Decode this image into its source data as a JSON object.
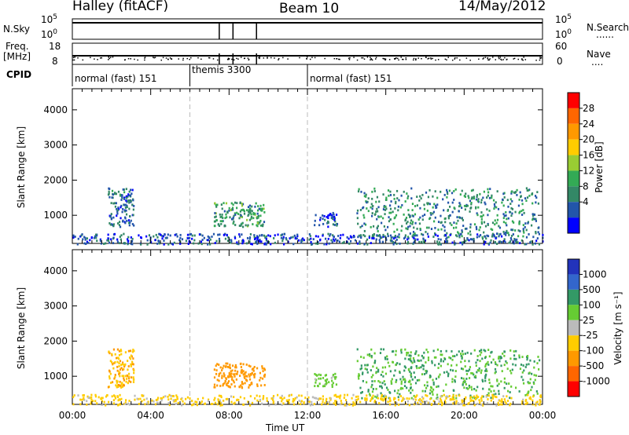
{
  "header": {
    "station": "Halley (fitACF)",
    "beam": "Beam 10",
    "date": "14/May/2012"
  },
  "strip_labels": {
    "nsky": "N.Sky",
    "freq_line1": "Freq.",
    "freq_line2": "[MHz]",
    "cpid": "CPID",
    "nsearch": "N.Search",
    "nave": "Nave",
    "nsky_ticks": [
      "10^5",
      "10^0"
    ],
    "nsearch_ticks": [
      "10^5",
      "10^0"
    ],
    "freq_ticks": [
      "18",
      "8"
    ],
    "nave_ticks": [
      "60",
      "0"
    ],
    "legend_dots": "......",
    "nave_dots": "...."
  },
  "cpid_segments": [
    {
      "start_hour": 0,
      "label": "normal (fast) 151"
    },
    {
      "start_hour": 6,
      "label": "themis 3300"
    },
    {
      "start_hour": 12,
      "label": "normal (fast) 151"
    }
  ],
  "colorbars": {
    "power": {
      "title": "Power [dB]",
      "ticks": [
        "28",
        "24",
        "20",
        "16",
        "12",
        "8",
        "4"
      ],
      "colors": [
        "#ff0000",
        "#ff6600",
        "#ff9900",
        "#ffcc00",
        "#99cc33",
        "#33aa55",
        "#338866",
        "#2255aa",
        "#0000ff"
      ]
    },
    "velocity": {
      "title": "Velocity [m s⁻¹]",
      "ticks": [
        "1000",
        "500",
        "100",
        "25",
        "-25",
        "-100",
        "-500",
        "-1000"
      ],
      "colors": [
        "#2233bb",
        "#3366cc",
        "#339966",
        "#66cc33",
        "#bbbbbb",
        "#ffcc00",
        "#ff9900",
        "#ff6600",
        "#ff0000"
      ]
    }
  },
  "chart_data": [
    {
      "type": "heatmap",
      "title": "",
      "ylabel": "Slant Range [km]",
      "xlabel": "",
      "xlim": [
        0,
        24
      ],
      "ylim": [
        200,
        4600
      ],
      "y_ticks": [
        1000,
        2000,
        3000,
        4000
      ],
      "x_ticks": [
        "00:00",
        "04:00",
        "08:00",
        "12:00",
        "16:00",
        "20:00",
        "00:00"
      ],
      "vertical_dashed_lines_hours": [
        6,
        12
      ],
      "clusters": [
        {
          "hours": [
            1.8,
            3.1
          ],
          "range_km": [
            700,
            1800
          ],
          "value": 8
        },
        {
          "hours": [
            7.2,
            9.8
          ],
          "range_km": [
            700,
            1400
          ],
          "value": 12
        },
        {
          "hours": [
            12.3,
            13.5
          ],
          "range_km": [
            700,
            1100
          ],
          "value": 6
        },
        {
          "hours": [
            14.5,
            23.8
          ],
          "range_km": [
            400,
            1800
          ],
          "value": 10
        },
        {
          "hours": [
            0,
            24
          ],
          "range_km": [
            200,
            500
          ],
          "value": 6
        }
      ]
    },
    {
      "type": "heatmap",
      "title": "",
      "ylabel": "Slant Range [km]",
      "xlabel": "Time UT",
      "xlim": [
        0,
        24
      ],
      "ylim": [
        200,
        4600
      ],
      "y_ticks": [
        1000,
        2000,
        3000,
        4000
      ],
      "x_ticks": [
        "00:00",
        "04:00",
        "08:00",
        "12:00",
        "16:00",
        "20:00",
        "00:00"
      ],
      "vertical_dashed_lines_hours": [
        6,
        12
      ],
      "clusters": [
        {
          "hours": [
            1.8,
            3.1
          ],
          "range_km": [
            700,
            1800
          ],
          "value": -100
        },
        {
          "hours": [
            7.2,
            9.8
          ],
          "range_km": [
            700,
            1400
          ],
          "value": -200
        },
        {
          "hours": [
            12.3,
            13.5
          ],
          "range_km": [
            700,
            1100
          ],
          "value": 50
        },
        {
          "hours": [
            14.5,
            23.8
          ],
          "range_km": [
            400,
            1800
          ],
          "value": 100
        },
        {
          "hours": [
            0,
            24
          ],
          "range_km": [
            200,
            500
          ],
          "value": -50
        }
      ]
    }
  ]
}
